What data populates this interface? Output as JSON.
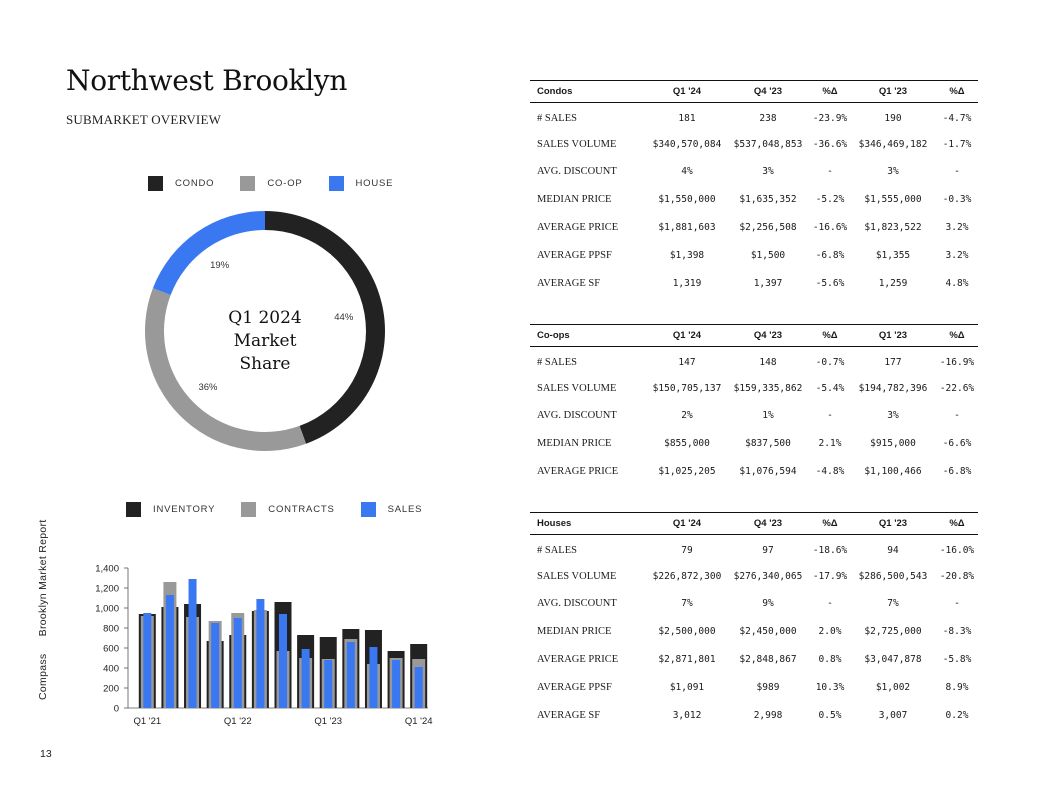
{
  "header": {
    "title": "Northwest Brooklyn",
    "subtitle": "SUBMARKET OVERVIEW"
  },
  "colors": {
    "condo": "#222222",
    "coop": "#999999",
    "house": "#3a78f2",
    "inventory": "#222222",
    "contracts": "#999999",
    "sales": "#3a78f2"
  },
  "chart_data": [
    {
      "type": "pie",
      "variant": "donut",
      "center_label": [
        "Q1 2024",
        "Market",
        "Share"
      ],
      "legend": [
        "CONDO",
        "CO-OP",
        "HOUSE"
      ],
      "slices": [
        {
          "name": "CONDO",
          "value": 44,
          "label": "44%"
        },
        {
          "name": "CO-OP",
          "value": 36,
          "label": "36%"
        },
        {
          "name": "HOUSE",
          "value": 19,
          "label": "19%"
        }
      ]
    },
    {
      "type": "bar",
      "legend": [
        "INVENTORY",
        "CONTRACTS",
        "SALES"
      ],
      "categories": [
        "Q1 '21",
        "Q2 '21",
        "Q3 '21",
        "Q4 '21",
        "Q1 '22",
        "Q2 '22",
        "Q3 '22",
        "Q4 '22",
        "Q1 '23",
        "Q2 '23",
        "Q3 '23",
        "Q4 '23",
        "Q1 '24"
      ],
      "x_tick_labels": [
        "Q1 '21",
        "Q1 '22",
        "Q1 '23",
        "Q1 '24"
      ],
      "ylim": [
        0,
        1400
      ],
      "yticks": [
        "0",
        "200",
        "400",
        "600",
        "800",
        "1,000",
        "1,200",
        "1,400"
      ],
      "series": [
        {
          "name": "INVENTORY",
          "values": [
            940,
            1010,
            1040,
            670,
            730,
            970,
            1060,
            730,
            710,
            790,
            780,
            570,
            640
          ]
        },
        {
          "name": "CONTRACTS",
          "values": [
            920,
            1260,
            910,
            870,
            950,
            980,
            570,
            500,
            490,
            690,
            440,
            500,
            490
          ]
        },
        {
          "name": "SALES",
          "values": [
            950,
            1130,
            1290,
            850,
            900,
            1090,
            940,
            590,
            480,
            660,
            610,
            480,
            410
          ]
        }
      ]
    }
  ],
  "side_label": {
    "brand": "Compass",
    "report": "Brooklyn Market Report"
  },
  "page_number": "13",
  "tables": {
    "condos": {
      "header": [
        "Condos",
        "Q1 '24",
        "Q4 '23",
        "%Δ",
        "Q1 '23",
        "%Δ"
      ],
      "rows": [
        [
          "# SALES",
          "181",
          "238",
          "-23.9%",
          "190",
          "-4.7%"
        ],
        [
          "SALES VOLUME",
          "$340,570,084",
          "$537,048,853",
          "-36.6%",
          "$346,469,182",
          "-1.7%"
        ],
        [
          "AVG. DISCOUNT",
          "4%",
          "3%",
          "-",
          "3%",
          "-"
        ],
        [
          "MEDIAN PRICE",
          "$1,550,000",
          "$1,635,352",
          "-5.2%",
          "$1,555,000",
          "-0.3%"
        ],
        [
          "AVERAGE PRICE",
          "$1,881,603",
          "$2,256,508",
          "-16.6%",
          "$1,823,522",
          "3.2%"
        ],
        [
          "AVERAGE PPSF",
          "$1,398",
          "$1,500",
          "-6.8%",
          "$1,355",
          "3.2%"
        ],
        [
          "AVERAGE SF",
          "1,319",
          "1,397",
          "-5.6%",
          "1,259",
          "4.8%"
        ]
      ]
    },
    "coops": {
      "header": [
        "Co-ops",
        "Q1 '24",
        "Q4 '23",
        "%Δ",
        "Q1 '23",
        "%Δ"
      ],
      "rows": [
        [
          "# SALES",
          "147",
          "148",
          "-0.7%",
          "177",
          "-16.9%"
        ],
        [
          "SALES VOLUME",
          "$150,705,137",
          "$159,335,862",
          "-5.4%",
          "$194,782,396",
          "-22.6%"
        ],
        [
          "AVG. DISCOUNT",
          "2%",
          "1%",
          "-",
          "3%",
          "-"
        ],
        [
          "MEDIAN PRICE",
          "$855,000",
          "$837,500",
          "2.1%",
          "$915,000",
          "-6.6%"
        ],
        [
          "AVERAGE PRICE",
          "$1,025,205",
          "$1,076,594",
          "-4.8%",
          "$1,100,466",
          "-6.8%"
        ]
      ]
    },
    "houses": {
      "header": [
        "Houses",
        "Q1 '24",
        "Q4 '23",
        "%Δ",
        "Q1 '23",
        "%Δ"
      ],
      "rows": [
        [
          "# SALES",
          "79",
          "97",
          "-18.6%",
          "94",
          "-16.0%"
        ],
        [
          "SALES VOLUME",
          "$226,872,300",
          "$276,340,065",
          "-17.9%",
          "$286,500,543",
          "-20.8%"
        ],
        [
          "AVG. DISCOUNT",
          "7%",
          "9%",
          "-",
          "7%",
          "-"
        ],
        [
          "MEDIAN PRICE",
          "$2,500,000",
          "$2,450,000",
          "2.0%",
          "$2,725,000",
          "-8.3%"
        ],
        [
          "AVERAGE PRICE",
          "$2,871,801",
          "$2,848,867",
          "0.8%",
          "$3,047,878",
          "-5.8%"
        ],
        [
          "AVERAGE PPSF",
          "$1,091",
          "$989",
          "10.3%",
          "$1,002",
          "8.9%"
        ],
        [
          "AVERAGE SF",
          "3,012",
          "2,998",
          "0.5%",
          "3,007",
          "0.2%"
        ]
      ]
    }
  }
}
